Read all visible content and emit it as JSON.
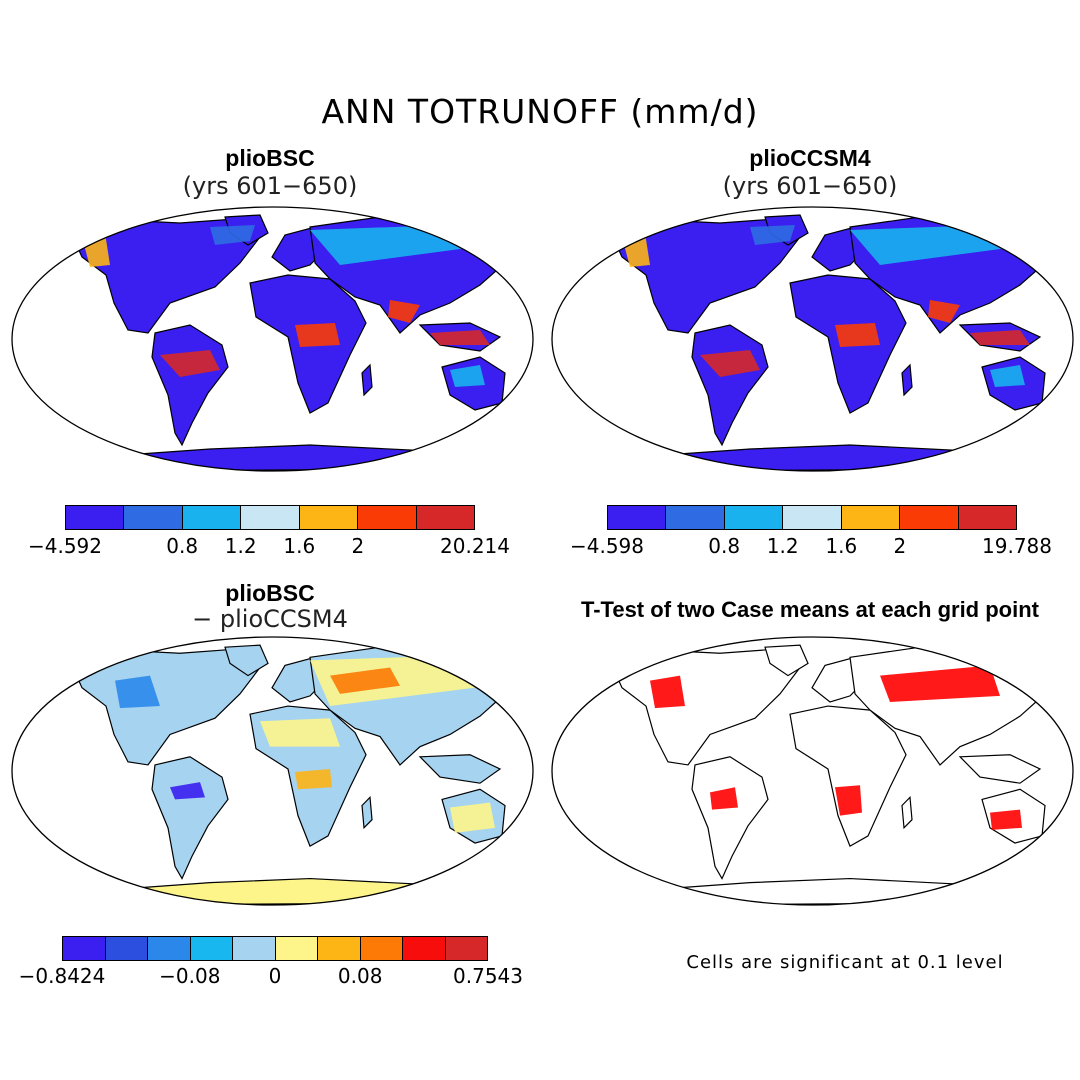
{
  "figure": {
    "title": "ANN TOTRUNOFF (mm/d)"
  },
  "panels": [
    {
      "id": "tl",
      "title": "plioBSC",
      "subtitle": "(yrs 601−650)",
      "colorbar": {
        "colors": [
          "#3a1ff0",
          "#2f6be3",
          "#1ab1ef",
          "#c9e6f5",
          "#fdb415",
          "#fb3b06",
          "#d62828"
        ],
        "labels": [
          "−4.592",
          "0.8",
          "1.2",
          "1.6",
          "2",
          "20.214"
        ],
        "label_positions": [
          0,
          2,
          3,
          4,
          5,
          7
        ]
      }
    },
    {
      "id": "tr",
      "title": "plioCCSM4",
      "subtitle": "(yrs 601−650)",
      "colorbar": {
        "colors": [
          "#3a1ff0",
          "#2f6be3",
          "#1ab1ef",
          "#c9e6f5",
          "#fdb415",
          "#fb3b06",
          "#d62828"
        ],
        "labels": [
          "−4.598",
          "0.8",
          "1.2",
          "1.6",
          "2",
          "19.788"
        ],
        "label_positions": [
          0,
          2,
          3,
          4,
          5,
          7
        ]
      }
    },
    {
      "id": "bl",
      "title": "plioBSC",
      "subtitle": "− plioCCSM4",
      "colorbar": {
        "colors": [
          "#3a1ff0",
          "#2c4fe0",
          "#2b88ea",
          "#18b7ef",
          "#a5d3f0",
          "#fdf58a",
          "#fdb415",
          "#fc7a05",
          "#f80d0d",
          "#d62828"
        ],
        "labels": [
          "−0.8424",
          "−0.08",
          "0",
          "0.08",
          "0.7543"
        ],
        "label_positions": [
          0,
          3,
          5,
          7,
          10
        ]
      }
    },
    {
      "id": "br",
      "title": "T-Test of two Case means at each grid point",
      "note": "Cells are significant at 0.1 level"
    }
  ]
}
